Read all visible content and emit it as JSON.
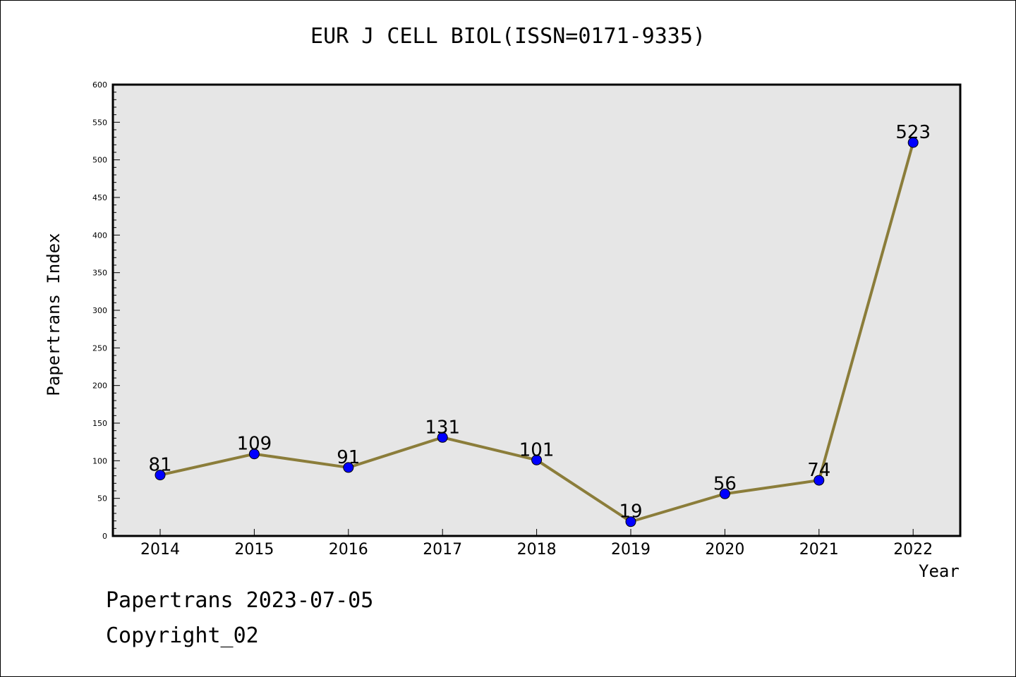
{
  "chart_data": {
    "type": "line",
    "title": "EUR J CELL BIOL(ISSN=0171-9335)",
    "xlabel": "Year",
    "ylabel": "Papertrans Index",
    "categories": [
      "2014",
      "2015",
      "2016",
      "2017",
      "2018",
      "2019",
      "2020",
      "2021",
      "2022"
    ],
    "series": [
      {
        "values": [
          81,
          109,
          91,
          131,
          101,
          19,
          56,
          74,
          523
        ]
      }
    ],
    "data_labels": [
      "81",
      "109",
      "91",
      "131",
      "101",
      "19",
      "56",
      "74",
      "523"
    ],
    "ylim": [
      0,
      600
    ],
    "yticks": [
      0,
      50,
      100,
      150,
      200,
      250,
      300,
      350,
      400,
      450,
      500,
      550,
      600
    ],
    "grid": false,
    "line_color": "#8b7d3a",
    "marker_color": "#0000ff",
    "plot_background": "#e6e6e6"
  },
  "footer": {
    "line1": "Papertrans 2023-07-05",
    "line2": "Copyright_02"
  }
}
